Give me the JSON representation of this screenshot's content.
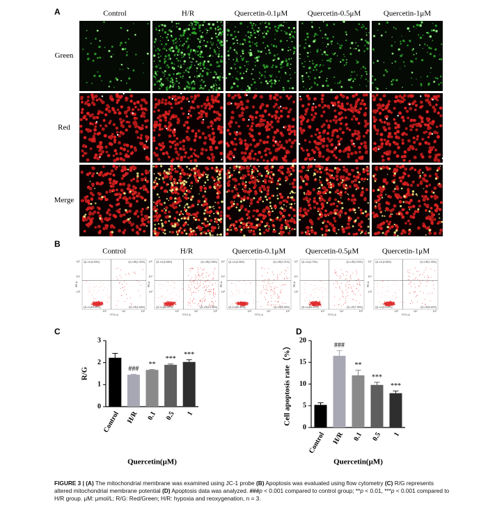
{
  "panel_a": {
    "label": "A",
    "columns": [
      "Control",
      "H/R",
      "Quercetin-0.1μM",
      "Quercetin-0.5μM",
      "Quercetin-1μM"
    ],
    "rows": [
      "Green",
      "Red",
      "Merge"
    ]
  },
  "panel_b": {
    "label": "B",
    "columns": [
      "Control",
      "H/R",
      "Quercetin-0.1μM",
      "Quercetin-0.5μM",
      "Quercetin-1μM"
    ],
    "plots": [
      {
        "ul": "Q1-UL(0.53%)",
        "ur": "Q1-UR(1.04%)",
        "ll": "Q1-LL(93.95%)",
        "lr": "Q1-LR(4.48%)"
      },
      {
        "ul": "Q1-UL(0.58%)",
        "ur": "Q1-UR(2.08%)",
        "ll": "Q1-LL(83.99%)",
        "lr": "Q1-LR(13.35%)"
      },
      {
        "ul": "Q1-UL(0.06%)",
        "ur": "Q1-UR(2.21%)",
        "ll": "Q1-LL(89.45%)",
        "lr": "Q1-LR(8.28%)"
      },
      {
        "ul": "Q1-UL(0.74%)",
        "ur": "Q1-UR(2.00%)",
        "ll": "Q1-LL(89.31%)",
        "lr": "Q1-LR(7.95%)"
      },
      {
        "ul": "Q1-UL(0.55%)",
        "ur": "Q1-UR(1.39%)",
        "ll": "Q1-LL(91.54%)",
        "lr": "Q1-LR(6.52%)"
      }
    ],
    "x_axis_label": "FITC-A",
    "y_axis_label": "PE-A",
    "tick_labels": [
      "10³",
      "10⁴",
      "10⁵"
    ]
  },
  "chart_data": [
    {
      "panel": "C",
      "type": "bar",
      "ylabel": "R/G",
      "xlabel": "Quercetin(μM)",
      "categories": [
        "Control",
        "H/R",
        "0.1",
        "0.5",
        "1"
      ],
      "values": [
        2.22,
        1.45,
        1.67,
        1.9,
        2.03
      ],
      "errors": [
        0.2,
        0.02,
        0.02,
        0.04,
        0.1
      ],
      "colors": [
        "#000000",
        "#a8a8b4",
        "#8a8a8a",
        "#5e5e5e",
        "#2e2e2e"
      ],
      "annotations": [
        null,
        "###",
        "**",
        "***",
        "***"
      ],
      "ylim": [
        0,
        3
      ],
      "yticks": [
        0,
        1,
        2,
        3
      ]
    },
    {
      "panel": "D",
      "type": "bar",
      "ylabel": "Cell apoptosis rate（%）",
      "xlabel": "Quercetin(μM)",
      "categories": [
        "Control",
        "H/R",
        "0.1",
        "0.5",
        "1"
      ],
      "values": [
        5.2,
        16.5,
        12.0,
        9.8,
        7.9
      ],
      "errors": [
        0.5,
        1.2,
        1.2,
        0.6,
        0.5
      ],
      "colors": [
        "#000000",
        "#a8a8b4",
        "#8a8a8a",
        "#5e5e5e",
        "#2e2e2e"
      ],
      "annotations": [
        null,
        "###",
        "**",
        "***",
        "***"
      ],
      "ylim": [
        0,
        20
      ],
      "yticks": [
        0,
        5,
        10,
        15,
        20
      ]
    }
  ],
  "caption": [
    {
      "text": "FIGURE 3 | ",
      "bold": true
    },
    {
      "text": "(A)",
      "bold": true
    },
    {
      "text": " The mitochondrial membrane was examined using JC-1 probe "
    },
    {
      "text": "(B)",
      "bold": true
    },
    {
      "text": " Apoptosis was evaluated using flow cytometry "
    },
    {
      "text": "(C)",
      "bold": true
    },
    {
      "text": " R/G represents altered mitochondrial membrane potential "
    },
    {
      "text": "(D)",
      "bold": true
    },
    {
      "text": " Apoptosis data was analyzed. "
    },
    {
      "text": "###",
      "bold": true
    },
    {
      "text": "p",
      "italic": true
    },
    {
      "text": " < 0.001 compared to control group; **"
    },
    {
      "text": "p",
      "italic": true
    },
    {
      "text": " < 0.01, ***"
    },
    {
      "text": "p",
      "italic": true
    },
    {
      "text": " < 0.001 compared to H/R group. μM: μmol/L; R/G: Red/Green; H/R: hypoxia and reoxygenation, n = 3."
    }
  ]
}
